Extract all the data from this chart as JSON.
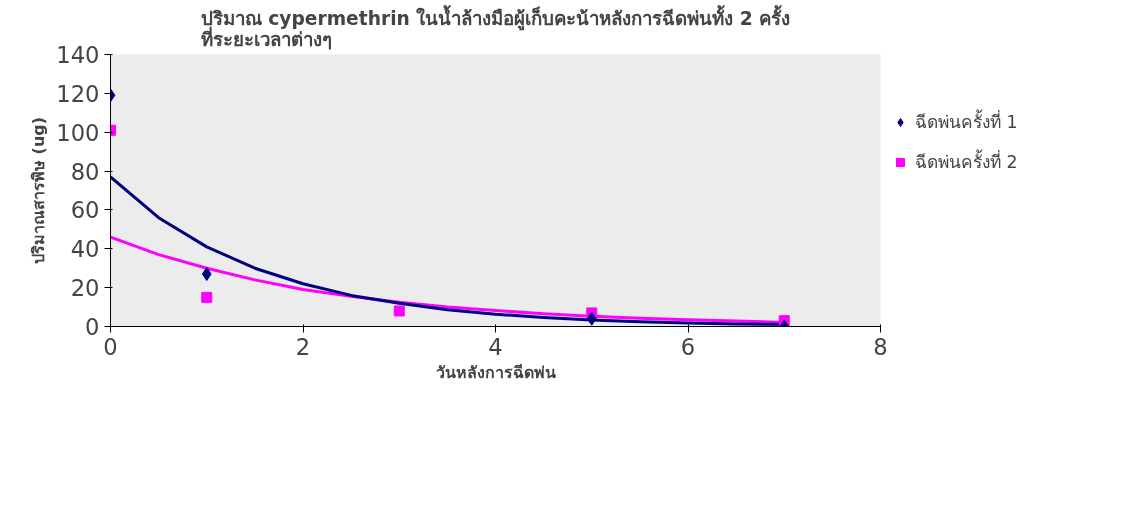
{
  "chart_data": {
    "type": "scatter",
    "title": "ปริมาณ cypermethrin ในน้ำล้างมือผู้เก็บคะน้าหลังการฉีดพ่นทั้ง 2 ครั้ง\nที่ระยะเวลาต่างๆ",
    "xlabel": "วันหลังการฉีดพ่น",
    "ylabel": "ปริมาณสารพิษ (ug)",
    "x": [
      0,
      1,
      3,
      5,
      7
    ],
    "series": [
      {
        "name": "ฉีดพ่นครั้งที่ 1",
        "color": "#000080",
        "marker": "diamond",
        "values": [
          119,
          27,
          null,
          4,
          0
        ]
      },
      {
        "name": "ฉีดพ่นครั้งที่ 2",
        "color": "#ff00ff",
        "marker": "square",
        "values": [
          101,
          15,
          8,
          7,
          3
        ]
      },
      {
        "type": "line",
        "color": "#ff00ff",
        "x": [
          0,
          0.5,
          1,
          1.5,
          2,
          2.5,
          3,
          3.5,
          4,
          4.5,
          5,
          5.5,
          6,
          6.5,
          7
        ],
        "values": [
          46,
          37,
          30,
          24,
          19,
          15.5,
          12.5,
          10,
          8.2,
          6.6,
          5.3,
          4.3,
          3.5,
          2.8,
          2.1
        ]
      },
      {
        "type": "line",
        "color": "#000080",
        "x": [
          0,
          0.5,
          1,
          1.5,
          2,
          2.5,
          3,
          3.5,
          4,
          4.5,
          5,
          5.5,
          6,
          6.5,
          7
        ],
        "values": [
          77,
          56,
          41,
          30,
          22,
          16,
          12,
          8.6,
          6.3,
          4.6,
          3.4,
          2.5,
          1.8,
          1.3,
          1
        ]
      }
    ],
    "xlim": [
      0,
      8
    ],
    "xticks": [
      0,
      2,
      4,
      6,
      8
    ],
    "ylim": [
      0,
      140
    ],
    "yticks": [
      0,
      20,
      40,
      60,
      80,
      100,
      120,
      140
    ],
    "grid": false,
    "legend": "right"
  }
}
